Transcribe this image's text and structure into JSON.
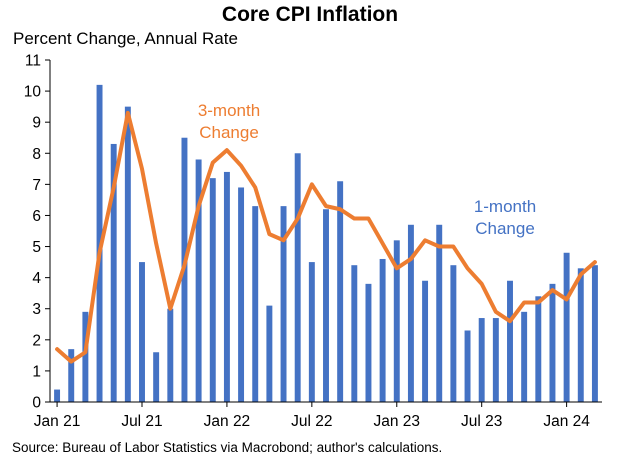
{
  "chart_data": {
    "type": "bar",
    "title": "Core CPI Inflation",
    "subtitle": "Percent Change, Annual Rate",
    "source": "Source: Bureau of Labor Statistics via Macrobond; author's calculations.",
    "ylim": [
      0,
      11
    ],
    "yticks": [
      0,
      1,
      2,
      3,
      4,
      5,
      6,
      7,
      8,
      9,
      10,
      11
    ],
    "xtick_labels": [
      "Jan 21",
      "Jul 21",
      "Jan 22",
      "Jul 22",
      "Jan 23",
      "Jul 23",
      "Jan 24"
    ],
    "xtick_index": [
      0,
      6,
      12,
      18,
      24,
      30,
      36
    ],
    "grid": false,
    "colors": {
      "one_month": "#4472C4",
      "three_month": "#ED7D31"
    },
    "x": [
      "Jan 21",
      "Feb 21",
      "Mar 21",
      "Apr 21",
      "May 21",
      "Jun 21",
      "Jul 21",
      "Aug 21",
      "Sep 21",
      "Oct 21",
      "Nov 21",
      "Dec 21",
      "Jan 22",
      "Feb 22",
      "Mar 22",
      "Apr 22",
      "May 22",
      "Jun 22",
      "Jul 22",
      "Aug 22",
      "Sep 22",
      "Oct 22",
      "Nov 22",
      "Dec 22",
      "Jan 23",
      "Feb 23",
      "Mar 23",
      "Apr 23",
      "May 23",
      "Jun 23",
      "Jul 23",
      "Aug 23",
      "Sep 23",
      "Oct 23",
      "Nov 23",
      "Dec 23",
      "Jan 24",
      "Feb 24",
      "Mar 24"
    ],
    "series": [
      {
        "name": "1-month Change",
        "kind": "bar",
        "values": [
          0.4,
          1.7,
          2.9,
          10.2,
          8.3,
          9.5,
          4.5,
          1.6,
          3.0,
          8.5,
          7.8,
          7.2,
          7.4,
          6.9,
          6.3,
          3.1,
          6.3,
          8.0,
          4.5,
          6.2,
          7.1,
          4.4,
          3.8,
          4.6,
          5.2,
          5.7,
          3.9,
          5.7,
          4.4,
          2.3,
          2.7,
          2.7,
          3.9,
          2.9,
          3.4,
          3.8,
          4.8,
          4.3,
          4.4
        ]
      },
      {
        "name": "3-month Change",
        "kind": "line",
        "values": [
          1.7,
          1.3,
          1.6,
          4.8,
          6.9,
          9.3,
          7.5,
          5.1,
          3.0,
          4.4,
          6.3,
          7.7,
          8.1,
          7.6,
          6.9,
          5.4,
          5.2,
          5.9,
          7.0,
          6.3,
          6.2,
          5.9,
          5.9,
          5.1,
          4.3,
          4.6,
          5.2,
          5.0,
          5.0,
          4.3,
          3.8,
          2.9,
          2.6,
          3.2,
          3.2,
          3.6,
          3.3,
          4.1,
          4.5
        ]
      }
    ],
    "annotations": [
      {
        "series": "3-month",
        "lines": [
          "3-month",
          "Change"
        ]
      },
      {
        "series": "1-month",
        "lines": [
          "1-month",
          "Change"
        ]
      }
    ]
  }
}
